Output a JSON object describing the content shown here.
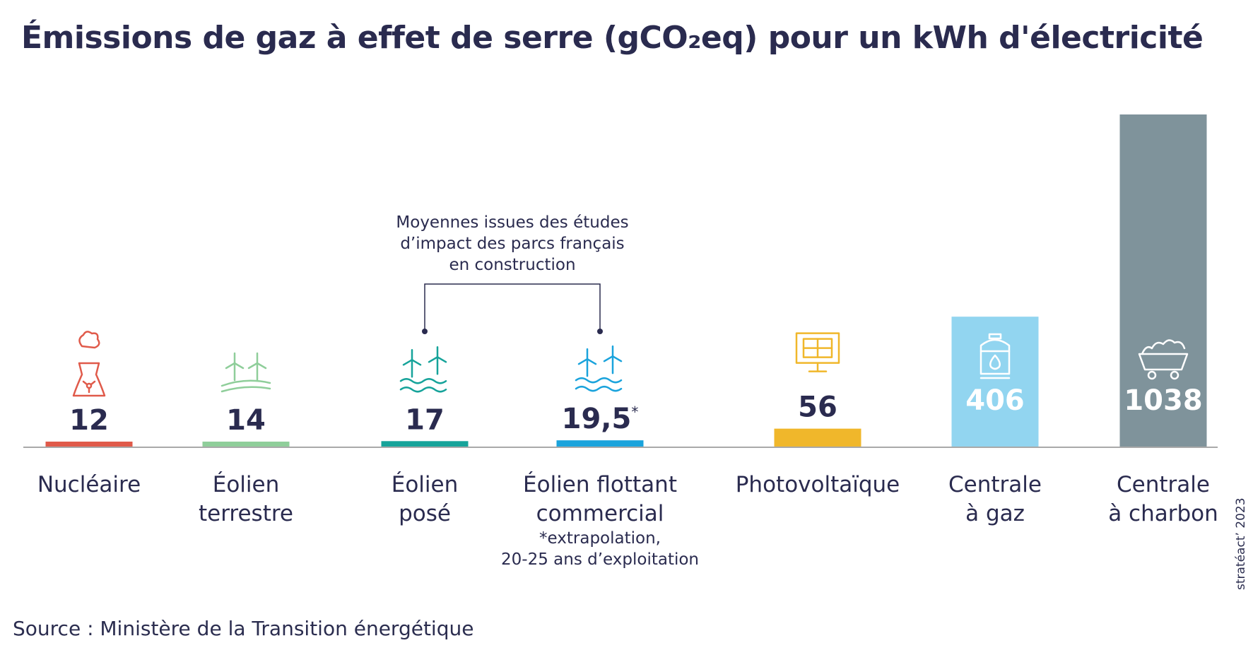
{
  "title": "Émissions de gaz à effet de serre (gCO₂eq) pour un kWh d'électricité",
  "source": "Source :  Ministère de la Transition énergétique",
  "credit": "stratéact’ 2023",
  "annotation": {
    "lines": [
      "Moyennes issues des études",
      "d’impact des parcs français",
      "en construction"
    ]
  },
  "chart_data": {
    "type": "bar",
    "title": "Émissions de gaz à effet de serre (gCO₂eq) pour un kWh d'électricité",
    "categories": [
      {
        "label_lines": [
          "Nucléaire"
        ],
        "value": 12,
        "value_label": "12",
        "color": "#e05a4a",
        "icon": "nuclear-plant-icon"
      },
      {
        "label_lines": [
          "Éolien",
          "terrestre"
        ],
        "value": 14,
        "value_label": "14",
        "color": "#8fce9a",
        "icon": "onshore-wind-icon"
      },
      {
        "label_lines": [
          "Éolien",
          "posé"
        ],
        "value": 17,
        "value_label": "17",
        "color": "#16a39a",
        "icon": "offshore-wind-icon"
      },
      {
        "label_lines": [
          "Éolien flottant",
          "commercial"
        ],
        "value": 19.5,
        "value_label": "19,5",
        "value_suffix": "*",
        "color": "#1aa3dc",
        "icon": "floating-wind-icon",
        "note_lines": [
          "*extrapolation,",
          "20-25 ans d’exploitation"
        ]
      },
      {
        "label_lines": [
          "Photovoltaïque"
        ],
        "value": 56,
        "value_label": "56",
        "color": "#f0b72b",
        "icon": "solar-panel-icon"
      },
      {
        "label_lines": [
          "Centrale",
          "à gaz"
        ],
        "value": 406,
        "value_label": "406",
        "color": "#92d5f0",
        "icon": "gas-tank-icon"
      },
      {
        "label_lines": [
          "Centrale",
          "à charbon"
        ],
        "value": 1038,
        "value_label": "1038",
        "color": "#7f939b",
        "icon": "coal-cart-icon"
      }
    ],
    "xlabel": "",
    "ylabel": "",
    "ylim": [
      0,
      1038
    ],
    "grid": false,
    "legend": "none"
  }
}
